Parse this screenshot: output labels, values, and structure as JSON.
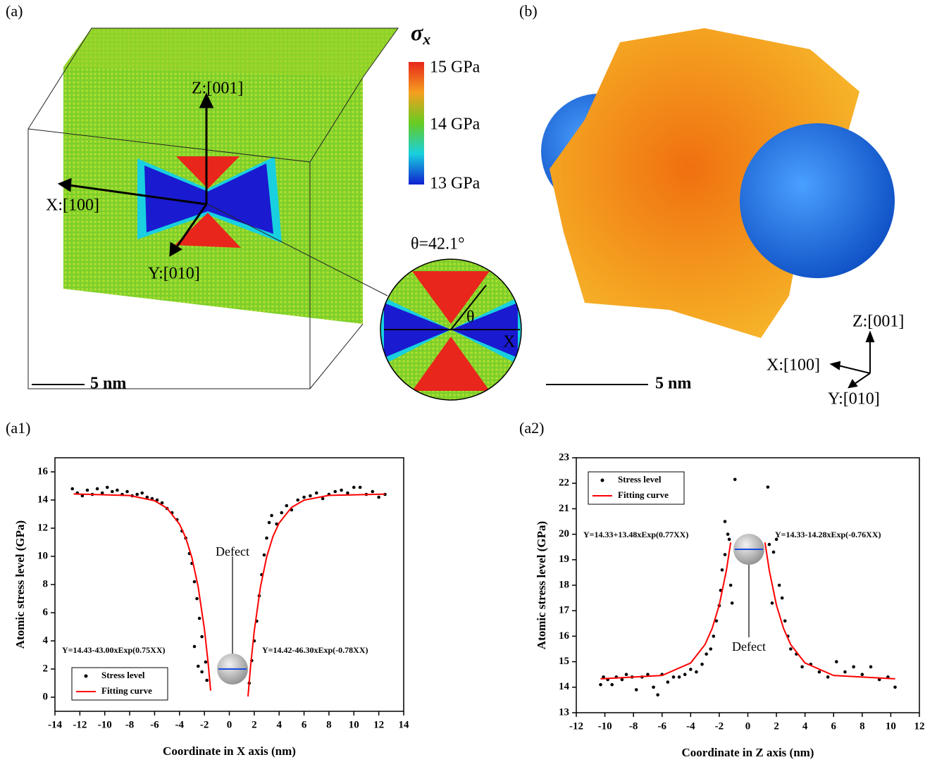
{
  "panels": {
    "a": {
      "label": "(a)",
      "colorbar_title": "σ",
      "colorbar_title_sub": "x",
      "colorbar_labels": [
        "15 GPa",
        "14 GPa",
        "13 GPa"
      ],
      "axes": [
        "Z:[001]",
        "X:[100]",
        "Y:[010]"
      ],
      "angle": "θ=42.1°",
      "inset_angle": "θ",
      "inset_axis": "X",
      "scale": "5 nm"
    },
    "b": {
      "label": "(b)",
      "axes": [
        "Z:[001]",
        "X:[100]",
        "Y:[010]"
      ],
      "scale": "5 nm"
    }
  },
  "chart_data": [
    {
      "type": "scatter",
      "panel_label": "(a1)",
      "x_label": "Coordinate in X axis (nm)",
      "y_label": "Atomic stress level (GPa)",
      "xlim": [
        -14,
        14
      ],
      "xticks": [
        -14,
        -12,
        -10,
        -8,
        -6,
        -4,
        -2,
        0,
        2,
        4,
        6,
        8,
        10,
        12,
        14
      ],
      "ylim": [
        -1,
        17
      ],
      "yticks": [
        0,
        2,
        4,
        6,
        8,
        10,
        12,
        14,
        16
      ],
      "grid": false,
      "legend": "lower left",
      "series": [
        {
          "name": "Stress level",
          "color": "#000000",
          "kind": "marker",
          "x": [
            -12.6,
            -12.2,
            -11.8,
            -11.4,
            -11,
            -10.6,
            -10.2,
            -9.8,
            -9.4,
            -9,
            -8.6,
            -8.2,
            -7.8,
            -7.4,
            -7,
            -6.6,
            -6.2,
            -5.8,
            -5.4,
            -5,
            -4.6,
            -4.2,
            -3.8,
            -3.5,
            -3.2,
            -3,
            -2.8,
            -2.6,
            -2.4,
            -2.2,
            -2.8,
            -2.5,
            -2.2,
            -1.9,
            -1.8,
            1.6,
            1.8,
            2,
            2.2,
            2.4,
            2.6,
            2.8,
            3,
            3.2,
            3.4,
            3.8,
            4.2,
            4.6,
            5,
            5.5,
            6,
            6.5,
            7,
            7.5,
            8,
            8.5,
            9,
            9.5,
            10,
            10.5,
            11,
            11.5,
            12,
            12.5
          ],
          "values": [
            14.8,
            14.5,
            14.3,
            14.7,
            14.4,
            14.8,
            14.5,
            14.9,
            14.6,
            14.7,
            14.4,
            14.6,
            14.3,
            14.4,
            14.5,
            14.2,
            14.1,
            14,
            13.8,
            13.4,
            13.1,
            12.6,
            11.8,
            11.3,
            10.2,
            9.5,
            8.2,
            7,
            5.6,
            4.3,
            3.6,
            2.2,
            1.8,
            2.5,
            1.2,
            1,
            2.6,
            4,
            5.4,
            7.2,
            8.7,
            10.1,
            11.3,
            12.4,
            12.9,
            12.3,
            13.1,
            13.6,
            13.3,
            14,
            14.2,
            14.3,
            14.5,
            14.1,
            14.4,
            14.6,
            14.7,
            14.5,
            14.9,
            14.9,
            14.4,
            14.6,
            14.2,
            14.4
          ]
        },
        {
          "name": "Fitting curve",
          "color": "#ff0000",
          "kind": "line",
          "x": [
            -12.5,
            -8,
            -6,
            -5,
            -4,
            -3.5,
            -3,
            -2.5,
            -2,
            -1.7,
            -1.5,
            null,
            1.5,
            1.7,
            2,
            2.5,
            3,
            3.5,
            4,
            5,
            6,
            8,
            12.5
          ],
          "values": [
            14.43,
            14.32,
            13.95,
            13.42,
            12.29,
            11.32,
            9.9,
            7.83,
            4.84,
            2.42,
            0.47,
            null,
            0.05,
            2.13,
            4.69,
            7.83,
            9.96,
            11.4,
            12.37,
            13.48,
            13.99,
            14.33,
            14.42
          ]
        }
      ],
      "annotations": [
        "Defect",
        "Y=14.43-43.00xExp(0.75XX)",
        "Y=14.42-46.30xExp(-0.78XX)"
      ]
    },
    {
      "type": "scatter",
      "panel_label": "(a2)",
      "x_label": "Coordinate in Z axis (nm)",
      "y_label": "Atomic stress level (GPa)",
      "xlim": [
        -12,
        12
      ],
      "xticks": [
        -12,
        -10,
        -8,
        -6,
        -4,
        -2,
        0,
        2,
        4,
        6,
        8,
        10,
        12
      ],
      "ylim": [
        13,
        23
      ],
      "yticks": [
        13,
        14,
        15,
        16,
        17,
        18,
        19,
        20,
        21,
        22,
        23
      ],
      "grid": false,
      "legend": "upper left",
      "series": [
        {
          "name": "Stress level",
          "color": "#000000",
          "kind": "marker",
          "x": [
            -10.3,
            -10.1,
            -9.8,
            -9.5,
            -9.2,
            -8.8,
            -8.5,
            -8.1,
            -7.8,
            -7.4,
            -7,
            -6.6,
            -6.3,
            -6,
            -5.6,
            -5.2,
            -4.8,
            -4.4,
            -4,
            -3.6,
            -3.2,
            -2.9,
            -2.6,
            -2.4,
            -2.2,
            -2,
            -1.9,
            -1.8,
            -1.6,
            -1.4,
            -1.2,
            -1.1,
            -1.6,
            -1.3,
            -0.9,
            1.4,
            1.5,
            1.7,
            1.8,
            2,
            2.2,
            2.4,
            2.6,
            2.8,
            3,
            3.4,
            3.8,
            4.4,
            5,
            5.6,
            6.2,
            6.8,
            7.4,
            8,
            8.6,
            9.2,
            9.8,
            10.3
          ],
          "values": [
            14.1,
            14.4,
            14.3,
            14.1,
            14.4,
            14.3,
            14.5,
            14.4,
            13.9,
            14.4,
            14.5,
            14,
            13.7,
            14.5,
            14.2,
            14.4,
            14.4,
            14.5,
            14.7,
            14.6,
            14.9,
            15.3,
            15.5,
            16,
            16.6,
            17.2,
            17.8,
            18.6,
            19.2,
            20,
            18,
            17.3,
            20.5,
            19.8,
            22.15,
            21.85,
            19.6,
            17.3,
            19.3,
            19.8,
            18,
            17.5,
            16.6,
            16,
            15.5,
            15.3,
            14.8,
            14.9,
            14.6,
            14.4,
            15,
            14.6,
            14.8,
            14.5,
            14.8,
            14.3,
            14.4,
            14
          ]
        },
        {
          "name": "Fitting curve",
          "color": "#ff0000",
          "kind": "line",
          "x": [
            -10.3,
            -6,
            -4,
            -3,
            -2.5,
            -2,
            -1.5,
            -1.2,
            null,
            1.2,
            1.5,
            2,
            2.5,
            3,
            4,
            6,
            10.3
          ],
          "values": [
            14.33,
            14.46,
            14.95,
            15.67,
            16.3,
            17.22,
            18.58,
            19.68,
            null,
            19.68,
            18.58,
            17.22,
            16.3,
            15.67,
            14.95,
            14.46,
            14.33
          ]
        }
      ],
      "annotations": [
        "Defect",
        "Y=14.33+13.48xExp(0.77XX)",
        "Y=14.33-14.28xExp(-0.76XX)"
      ]
    }
  ]
}
